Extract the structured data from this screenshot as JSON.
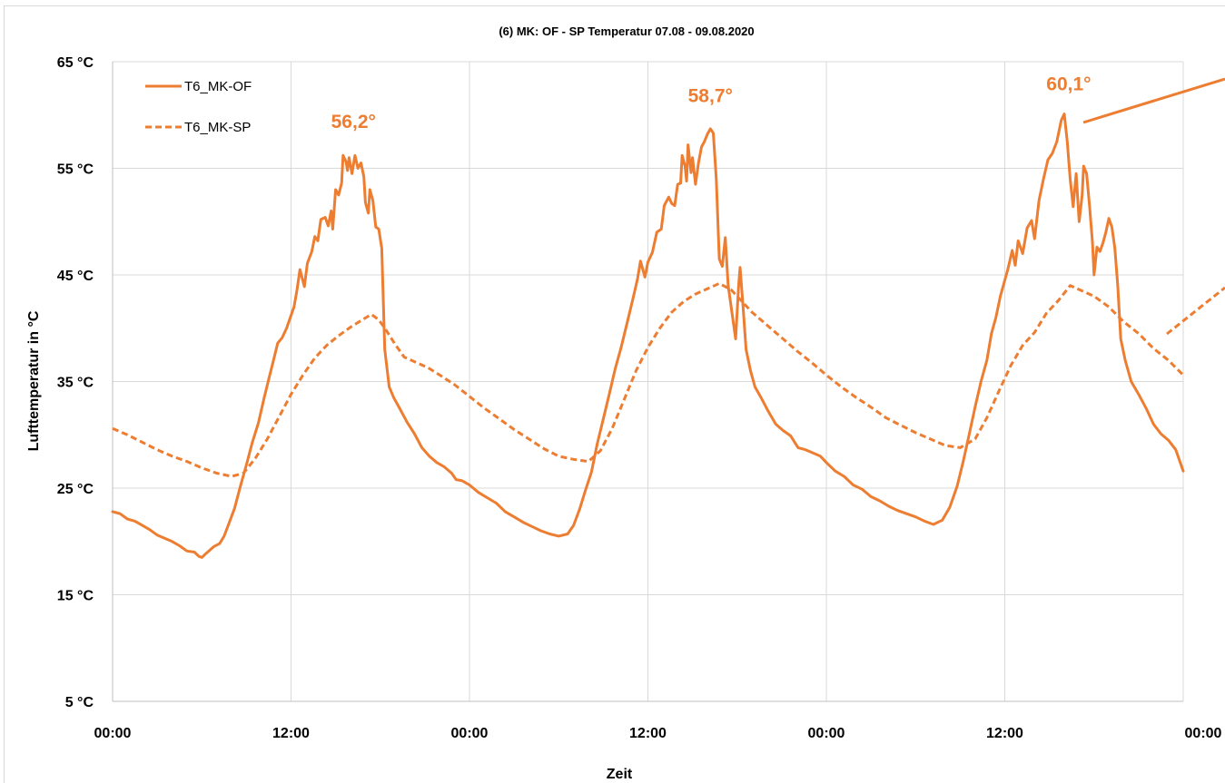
{
  "colors": {
    "series": "#ED7D31",
    "grid": "#d9d9d9",
    "axis": "#bfbfbf"
  },
  "chart_data": {
    "type": "line",
    "title": "(6) MK: OF - SP Temperatur 07.08 - 09.08.2020",
    "xlabel": "Zeit",
    "ylabel": "Lufttemperatur in °C",
    "ylim": [
      5,
      65
    ],
    "xlim": [
      0,
      72
    ],
    "x_unit": "hours",
    "yticks": [
      5,
      15,
      25,
      35,
      45,
      55,
      65
    ],
    "ytick_labels": [
      "5 °C",
      "15 °C",
      "25 °C",
      "35 °C",
      "45 °C",
      "55 °C",
      "65 °C"
    ],
    "xticks": [
      0,
      12,
      24,
      36,
      48,
      60,
      72
    ],
    "xtick_labels": [
      "00:00",
      "12:00",
      "00:00",
      "12:00",
      "00:00",
      "12:00",
      "00:00"
    ],
    "grid": true,
    "legend_position": "top-left",
    "annotations": [
      {
        "text": "56,2°",
        "x": 16.2,
        "y": 58.8
      },
      {
        "text": "58,7°",
        "x": 40.2,
        "y": 61.2
      },
      {
        "text": "60,1°",
        "x": 64.3,
        "y": 62.3
      }
    ],
    "series": [
      {
        "name": "T6_MK-OF",
        "style": "solid",
        "points": [
          [
            0,
            22.8
          ],
          [
            0.5,
            22.6
          ],
          [
            1,
            22.1
          ],
          [
            1.5,
            21.9
          ],
          [
            2,
            21.5
          ],
          [
            2.5,
            21.1
          ],
          [
            3,
            20.6
          ],
          [
            3.5,
            20.3
          ],
          [
            4,
            20.0
          ],
          [
            4.5,
            19.6
          ],
          [
            5,
            19.1
          ],
          [
            5.5,
            19.0
          ],
          [
            5.8,
            18.6
          ],
          [
            6,
            18.5
          ],
          [
            6.3,
            18.9
          ],
          [
            6.8,
            19.5
          ],
          [
            7.2,
            19.8
          ],
          [
            7.5,
            20.5
          ],
          [
            7.8,
            21.6
          ],
          [
            8.2,
            23.1
          ],
          [
            8.6,
            25.2
          ],
          [
            9,
            27.2
          ],
          [
            9.4,
            29.3
          ],
          [
            9.8,
            31.1
          ],
          [
            10.2,
            33.5
          ],
          [
            10.5,
            35.2
          ],
          [
            10.8,
            36.9
          ],
          [
            11.1,
            38.6
          ],
          [
            11.4,
            39.1
          ],
          [
            11.7,
            40.0
          ],
          [
            12,
            41.2
          ],
          [
            12.2,
            42.0
          ],
          [
            12.4,
            43.6
          ],
          [
            12.6,
            45.5
          ],
          [
            12.9,
            43.9
          ],
          [
            13.1,
            46.1
          ],
          [
            13.4,
            47.2
          ],
          [
            13.6,
            48.6
          ],
          [
            13.8,
            48.2
          ],
          [
            14,
            50.2
          ],
          [
            14.3,
            50.4
          ],
          [
            14.5,
            49.6
          ],
          [
            14.7,
            51.0
          ],
          [
            14.8,
            49.3
          ],
          [
            15,
            53.0
          ],
          [
            15.2,
            52.5
          ],
          [
            15.4,
            53.6
          ],
          [
            15.5,
            56.2
          ],
          [
            15.7,
            55.6
          ],
          [
            15.8,
            54.8
          ],
          [
            15.9,
            56.0
          ],
          [
            16.1,
            54.5
          ],
          [
            16.3,
            56.2
          ],
          [
            16.5,
            55.0
          ],
          [
            16.7,
            55.5
          ],
          [
            16.9,
            54.2
          ],
          [
            17.0,
            51.8
          ],
          [
            17.2,
            50.8
          ],
          [
            17.3,
            53.0
          ],
          [
            17.5,
            52.0
          ],
          [
            17.7,
            49.5
          ],
          [
            17.9,
            49.3
          ],
          [
            18.1,
            47.5
          ],
          [
            18.3,
            38.0
          ],
          [
            18.6,
            34.5
          ],
          [
            18.9,
            33.5
          ],
          [
            19.3,
            32.5
          ],
          [
            19.8,
            31.2
          ],
          [
            20.3,
            30.1
          ],
          [
            20.8,
            28.8
          ],
          [
            21.3,
            28.0
          ],
          [
            21.8,
            27.4
          ],
          [
            22.3,
            27.0
          ],
          [
            22.8,
            26.4
          ],
          [
            23.1,
            25.8
          ],
          [
            23.5,
            25.7
          ],
          [
            24,
            25.3
          ],
          [
            24.6,
            24.6
          ],
          [
            25.2,
            24.1
          ],
          [
            25.8,
            23.6
          ],
          [
            26.4,
            22.8
          ],
          [
            27,
            22.3
          ],
          [
            27.6,
            21.8
          ],
          [
            28.2,
            21.4
          ],
          [
            28.8,
            21.0
          ],
          [
            29.4,
            20.7
          ],
          [
            30,
            20.5
          ],
          [
            30.6,
            20.7
          ],
          [
            31,
            21.5
          ],
          [
            31.4,
            23.0
          ],
          [
            31.8,
            24.8
          ],
          [
            32.2,
            26.5
          ],
          [
            32.6,
            29.2
          ],
          [
            33,
            31.5
          ],
          [
            33.4,
            33.8
          ],
          [
            33.8,
            36.2
          ],
          [
            34.2,
            38.2
          ],
          [
            34.6,
            40.5
          ],
          [
            35,
            42.8
          ],
          [
            35.3,
            44.6
          ],
          [
            35.5,
            46.3
          ],
          [
            35.8,
            44.8
          ],
          [
            36,
            46.2
          ],
          [
            36.3,
            47.1
          ],
          [
            36.6,
            49.0
          ],
          [
            36.9,
            49.3
          ],
          [
            37.1,
            51.5
          ],
          [
            37.4,
            52.3
          ],
          [
            37.6,
            51.7
          ],
          [
            37.8,
            51.5
          ],
          [
            38,
            53.5
          ],
          [
            38.2,
            53.6
          ],
          [
            38.3,
            56.2
          ],
          [
            38.5,
            55.2
          ],
          [
            38.6,
            53.8
          ],
          [
            38.7,
            57.2
          ],
          [
            38.9,
            54.6
          ],
          [
            39.0,
            56.0
          ],
          [
            39.2,
            53.5
          ],
          [
            39.4,
            55.5
          ],
          [
            39.6,
            57.0
          ],
          [
            39.8,
            57.5
          ],
          [
            40.0,
            58.2
          ],
          [
            40.2,
            58.7
          ],
          [
            40.4,
            58.3
          ],
          [
            40.6,
            54.0
          ],
          [
            40.8,
            46.5
          ],
          [
            41.0,
            45.8
          ],
          [
            41.2,
            48.5
          ],
          [
            41.4,
            44.0
          ],
          [
            41.7,
            41.0
          ],
          [
            41.9,
            39.0
          ],
          [
            42.1,
            44.0
          ],
          [
            42.2,
            45.7
          ],
          [
            42.4,
            42.0
          ],
          [
            42.6,
            38.0
          ],
          [
            42.9,
            36.0
          ],
          [
            43.2,
            34.5
          ],
          [
            43.6,
            33.5
          ],
          [
            44.1,
            32.2
          ],
          [
            44.6,
            31.0
          ],
          [
            45.1,
            30.4
          ],
          [
            45.6,
            29.9
          ],
          [
            46.1,
            28.8
          ],
          [
            46.6,
            28.6
          ],
          [
            47.1,
            28.3
          ],
          [
            47.6,
            28.0
          ],
          [
            48,
            27.4
          ],
          [
            48.6,
            26.6
          ],
          [
            49.2,
            26.1
          ],
          [
            49.8,
            25.3
          ],
          [
            50.4,
            24.9
          ],
          [
            51,
            24.2
          ],
          [
            51.6,
            23.8
          ],
          [
            52.2,
            23.3
          ],
          [
            52.8,
            22.9
          ],
          [
            53.4,
            22.6
          ],
          [
            54,
            22.3
          ],
          [
            54.6,
            21.9
          ],
          [
            55.2,
            21.6
          ],
          [
            55.8,
            22.0
          ],
          [
            56.3,
            23.2
          ],
          [
            56.8,
            25.2
          ],
          [
            57.2,
            27.5
          ],
          [
            57.6,
            30.0
          ],
          [
            58,
            32.6
          ],
          [
            58.4,
            35.0
          ],
          [
            58.8,
            37.0
          ],
          [
            59.1,
            39.5
          ],
          [
            59.4,
            41.0
          ],
          [
            59.7,
            43.0
          ],
          [
            60,
            44.5
          ],
          [
            60.2,
            45.5
          ],
          [
            60.5,
            47.3
          ],
          [
            60.7,
            45.9
          ],
          [
            60.9,
            48.2
          ],
          [
            61.2,
            47.0
          ],
          [
            61.5,
            49.4
          ],
          [
            61.8,
            50.1
          ],
          [
            62,
            48.4
          ],
          [
            62.3,
            52.0
          ],
          [
            62.6,
            54.0
          ],
          [
            62.9,
            55.8
          ],
          [
            63.2,
            56.4
          ],
          [
            63.5,
            57.5
          ],
          [
            63.8,
            59.5
          ],
          [
            64.0,
            60.1
          ],
          [
            64.2,
            57.5
          ],
          [
            64.4,
            54.0
          ],
          [
            64.6,
            51.4
          ],
          [
            64.8,
            54.5
          ],
          [
            65.0,
            50.0
          ],
          [
            65.2,
            52.5
          ],
          [
            65.3,
            55.2
          ],
          [
            65.5,
            54.5
          ],
          [
            65.7,
            51.5
          ],
          [
            65.9,
            48.0
          ],
          [
            66.0,
            45.0
          ],
          [
            66.2,
            47.6
          ],
          [
            66.4,
            47.2
          ],
          [
            66.6,
            48.0
          ],
          [
            66.8,
            49.0
          ],
          [
            67.0,
            50.3
          ],
          [
            67.2,
            49.5
          ],
          [
            67.4,
            47.5
          ],
          [
            67.6,
            44.0
          ],
          [
            67.8,
            39.0
          ],
          [
            68.1,
            37.0
          ],
          [
            68.5,
            35.0
          ],
          [
            69,
            33.8
          ],
          [
            69.5,
            32.5
          ],
          [
            70,
            31.0
          ],
          [
            70.5,
            30.1
          ],
          [
            71,
            29.5
          ],
          [
            71.5,
            28.6
          ],
          [
            72,
            26.6
          ]
        ]
      },
      {
        "name": "T6_MK-SP",
        "style": "dashed",
        "points": [
          [
            0,
            30.6
          ],
          [
            1,
            30.0
          ],
          [
            2,
            29.3
          ],
          [
            3,
            28.6
          ],
          [
            4,
            28.0
          ],
          [
            5,
            27.5
          ],
          [
            6,
            26.9
          ],
          [
            7,
            26.4
          ],
          [
            8,
            26.1
          ],
          [
            8.8,
            26.4
          ],
          [
            9.6,
            27.8
          ],
          [
            10.4,
            29.6
          ],
          [
            11.2,
            31.7
          ],
          [
            12,
            33.8
          ],
          [
            12.8,
            35.6
          ],
          [
            13.6,
            37.2
          ],
          [
            14.4,
            38.4
          ],
          [
            15.2,
            39.3
          ],
          [
            16,
            40.1
          ],
          [
            16.8,
            40.8
          ],
          [
            17.4,
            41.3
          ],
          [
            17.9,
            40.8
          ],
          [
            18.4,
            39.8
          ],
          [
            19.0,
            38.5
          ],
          [
            19.6,
            37.3
          ],
          [
            20.4,
            36.8
          ],
          [
            21.2,
            36.3
          ],
          [
            22,
            35.6
          ],
          [
            23,
            34.7
          ],
          [
            24,
            33.6
          ],
          [
            25,
            32.5
          ],
          [
            26,
            31.5
          ],
          [
            27,
            30.5
          ],
          [
            28,
            29.6
          ],
          [
            29,
            28.7
          ],
          [
            30,
            28.0
          ],
          [
            31,
            27.7
          ],
          [
            32,
            27.5
          ],
          [
            32.8,
            28.5
          ],
          [
            33.6,
            30.6
          ],
          [
            34.4,
            33.3
          ],
          [
            35.2,
            36.0
          ],
          [
            36,
            38.2
          ],
          [
            36.8,
            40.0
          ],
          [
            37.6,
            41.5
          ],
          [
            38.4,
            42.5
          ],
          [
            39.2,
            43.2
          ],
          [
            40,
            43.7
          ],
          [
            40.8,
            44.2
          ],
          [
            41.6,
            43.6
          ],
          [
            42.2,
            42.7
          ],
          [
            43,
            41.5
          ],
          [
            44,
            40.3
          ],
          [
            45,
            39.1
          ],
          [
            46,
            37.9
          ],
          [
            47,
            36.8
          ],
          [
            48,
            35.6
          ],
          [
            49,
            34.5
          ],
          [
            50,
            33.5
          ],
          [
            51,
            32.6
          ],
          [
            52,
            31.6
          ],
          [
            53,
            30.9
          ],
          [
            54,
            30.2
          ],
          [
            55,
            29.6
          ],
          [
            56,
            29.0
          ],
          [
            57,
            28.8
          ],
          [
            58,
            29.6
          ],
          [
            58.8,
            31.6
          ],
          [
            59.6,
            34.1
          ],
          [
            60.4,
            36.5
          ],
          [
            61.2,
            38.4
          ],
          [
            62,
            39.6
          ],
          [
            62.8,
            41.4
          ],
          [
            63.6,
            42.6
          ],
          [
            64.4,
            44.0
          ],
          [
            65.2,
            43.5
          ],
          [
            66,
            43.0
          ],
          [
            67,
            42.0
          ],
          [
            68,
            40.6
          ],
          [
            69,
            39.5
          ],
          [
            70,
            38.1
          ],
          [
            71,
            37.0
          ],
          [
            72,
            35.6
          ]
        ]
      }
    ]
  }
}
